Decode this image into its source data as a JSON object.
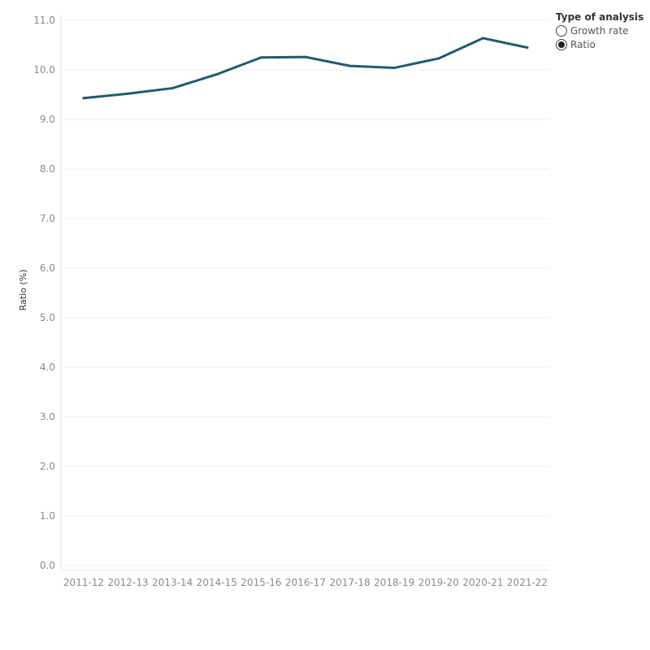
{
  "legend": {
    "title": "Type of analysis",
    "options": [
      {
        "label": "Growth rate",
        "selected": false
      },
      {
        "label": "Ratio",
        "selected": true
      }
    ]
  },
  "chart_data": {
    "type": "line",
    "title": "",
    "xlabel": "",
    "ylabel": "Ratio (%)",
    "categories": [
      "2011-12",
      "2012-13",
      "2013-14",
      "2014-15",
      "2015-16",
      "2016-17",
      "2017-18",
      "2018-19",
      "2019-20",
      "2020-21",
      "2021-22"
    ],
    "series": [
      {
        "values": [
          9.43,
          9.52,
          9.63,
          9.91,
          10.25,
          10.26,
          10.08,
          10.04,
          10.23,
          10.64,
          10.45
        ]
      }
    ],
    "ylim": [
      0,
      11
    ],
    "yticks": [
      "0.0",
      "1.0",
      "2.0",
      "3.0",
      "4.0",
      "5.0",
      "6.0",
      "7.0",
      "8.0",
      "9.0",
      "10.0",
      "11.0"
    ],
    "grid": true,
    "line_color": "#1f5b6e",
    "legend_position": "top-right"
  }
}
